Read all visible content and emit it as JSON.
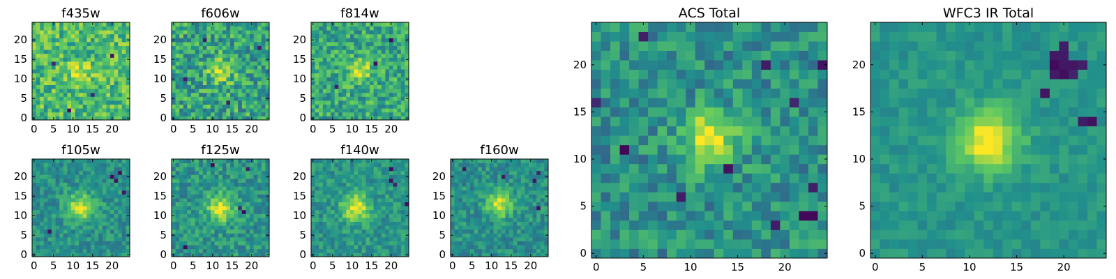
{
  "colormap": [
    "#440154",
    "#3b528b",
    "#21918c",
    "#5ec962",
    "#fde725"
  ],
  "chart_data": [
    {
      "type": "heatmap",
      "title": "f435w",
      "grid": "25x25",
      "xlim": [
        0,
        25
      ],
      "ylim": [
        0,
        25
      ],
      "xticks": [
        0,
        5,
        10,
        15,
        20
      ],
      "yticks": [
        0,
        5,
        10,
        15,
        20
      ],
      "source_center": [
        12,
        12
      ],
      "source_sigma": 2.0,
      "source_amp": 0.25,
      "noise": 0.35,
      "base": 0.68,
      "seed": 11,
      "dark_pixels": [
        [
          5,
          14
        ],
        [
          9,
          2
        ],
        [
          15,
          6
        ],
        [
          20,
          16
        ]
      ]
    },
    {
      "type": "heatmap",
      "title": "f606w",
      "grid": "25x25",
      "xlim": [
        0,
        25
      ],
      "ylim": [
        0,
        25
      ],
      "xticks": [
        0,
        5,
        10,
        15,
        20
      ],
      "yticks": [
        0,
        5,
        10,
        15,
        20
      ],
      "source_center": [
        12,
        12
      ],
      "source_sigma": 2.2,
      "source_amp": 0.35,
      "noise": 0.38,
      "base": 0.58,
      "seed": 23,
      "dark_pixels": [
        [
          3,
          10
        ],
        [
          14,
          4
        ],
        [
          22,
          18
        ],
        [
          8,
          20
        ]
      ]
    },
    {
      "type": "heatmap",
      "title": "f814w",
      "grid": "25x25",
      "xlim": [
        0,
        25
      ],
      "ylim": [
        0,
        25
      ],
      "xticks": [
        0,
        5,
        10,
        15,
        20
      ],
      "yticks": [
        0,
        5,
        10,
        15,
        20
      ],
      "source_center": [
        12,
        12
      ],
      "source_sigma": 2.0,
      "source_amp": 0.35,
      "noise": 0.33,
      "base": 0.6,
      "seed": 37,
      "dark_pixels": [
        [
          20,
          20
        ],
        [
          6,
          8
        ],
        [
          16,
          14
        ]
      ]
    },
    {
      "type": "heatmap",
      "title": "f105w",
      "grid": "25x25",
      "xlim": [
        0,
        25
      ],
      "ylim": [
        0,
        25
      ],
      "xticks": [
        0,
        5,
        10,
        15,
        20
      ],
      "yticks": [
        0,
        5,
        10,
        15,
        20
      ],
      "source_center": [
        12,
        12
      ],
      "source_sigma": 2.5,
      "source_amp": 0.45,
      "noise": 0.22,
      "base": 0.5,
      "seed": 51,
      "dark_pixels": [
        [
          20,
          20
        ],
        [
          21,
          19
        ],
        [
          22,
          21
        ],
        [
          23,
          16
        ],
        [
          4,
          6
        ]
      ]
    },
    {
      "type": "heatmap",
      "title": "f125w",
      "grid": "25x25",
      "xlim": [
        0,
        25
      ],
      "ylim": [
        0,
        25
      ],
      "xticks": [
        0,
        5,
        10,
        15,
        20
      ],
      "yticks": [
        0,
        5,
        10,
        15,
        20
      ],
      "source_center": [
        12,
        12
      ],
      "source_sigma": 2.5,
      "source_amp": 0.42,
      "noise": 0.25,
      "base": 0.52,
      "seed": 67,
      "dark_pixels": [
        [
          17,
          12
        ],
        [
          18,
          11
        ],
        [
          19,
          22
        ],
        [
          10,
          23
        ],
        [
          3,
          2
        ]
      ]
    },
    {
      "type": "heatmap",
      "title": "f140w",
      "grid": "25x25",
      "xlim": [
        0,
        25
      ],
      "ylim": [
        0,
        25
      ],
      "xticks": [
        0,
        5,
        10,
        15,
        20
      ],
      "yticks": [
        0,
        5,
        10,
        15,
        20
      ],
      "source_center": [
        11,
        12
      ],
      "source_sigma": 2.5,
      "source_amp": 0.45,
      "noise": 0.22,
      "base": 0.52,
      "seed": 79,
      "dark_pixels": [
        [
          20,
          19
        ],
        [
          21,
          18
        ],
        [
          20,
          22
        ],
        [
          24,
          13
        ]
      ]
    },
    {
      "type": "heatmap",
      "title": "f160w",
      "grid": "25x25",
      "xlim": [
        0,
        25
      ],
      "ylim": [
        0,
        25
      ],
      "xticks": [
        0,
        5,
        10,
        15,
        20
      ],
      "yticks": [
        0,
        5,
        10,
        15,
        20
      ],
      "source_center": [
        12,
        13
      ],
      "source_sigma": 2.3,
      "source_amp": 0.45,
      "noise": 0.22,
      "base": 0.5,
      "seed": 91,
      "dark_pixels": [
        [
          3,
          22
        ],
        [
          13,
          20
        ],
        [
          21,
          19
        ],
        [
          22,
          21
        ],
        [
          22,
          12
        ]
      ]
    },
    {
      "type": "heatmap",
      "title": "ACS Total",
      "grid": "25x25",
      "xlim": [
        0,
        25
      ],
      "ylim": [
        0,
        25
      ],
      "xticks": [
        0,
        5,
        10,
        15,
        20
      ],
      "yticks": [
        0,
        5,
        10,
        15,
        20
      ],
      "source_center": [
        12,
        12
      ],
      "source_sigma": 2.0,
      "source_amp": 0.5,
      "noise": 0.28,
      "base": 0.5,
      "seed": 103,
      "dark_pixels": [
        [
          5,
          23
        ],
        [
          18,
          20
        ],
        [
          24,
          20
        ],
        [
          0,
          16
        ],
        [
          21,
          16
        ],
        [
          3,
          11
        ],
        [
          14,
          9
        ],
        [
          9,
          6
        ],
        [
          23,
          7
        ],
        [
          22,
          4
        ],
        [
          23,
          4
        ],
        [
          19,
          3
        ]
      ]
    },
    {
      "type": "heatmap",
      "title": "WFC3 IR Total",
      "grid": "25x25",
      "xlim": [
        0,
        25
      ],
      "ylim": [
        0,
        25
      ],
      "xticks": [
        0,
        5,
        10,
        15,
        20
      ],
      "yticks": [
        0,
        5,
        10,
        15,
        20
      ],
      "source_center": [
        12,
        12
      ],
      "source_sigma": 2.3,
      "source_amp": 0.5,
      "noise": 0.12,
      "base": 0.52,
      "seed": 117,
      "dark_pixels": [
        [
          19,
          21
        ],
        [
          20,
          21
        ],
        [
          20,
          20
        ],
        [
          21,
          20
        ],
        [
          19,
          20
        ],
        [
          21,
          19
        ],
        [
          20,
          19
        ],
        [
          19,
          19
        ],
        [
          22,
          20
        ],
        [
          20,
          22
        ],
        [
          22,
          14
        ],
        [
          23,
          14
        ],
        [
          18,
          17
        ]
      ]
    }
  ]
}
